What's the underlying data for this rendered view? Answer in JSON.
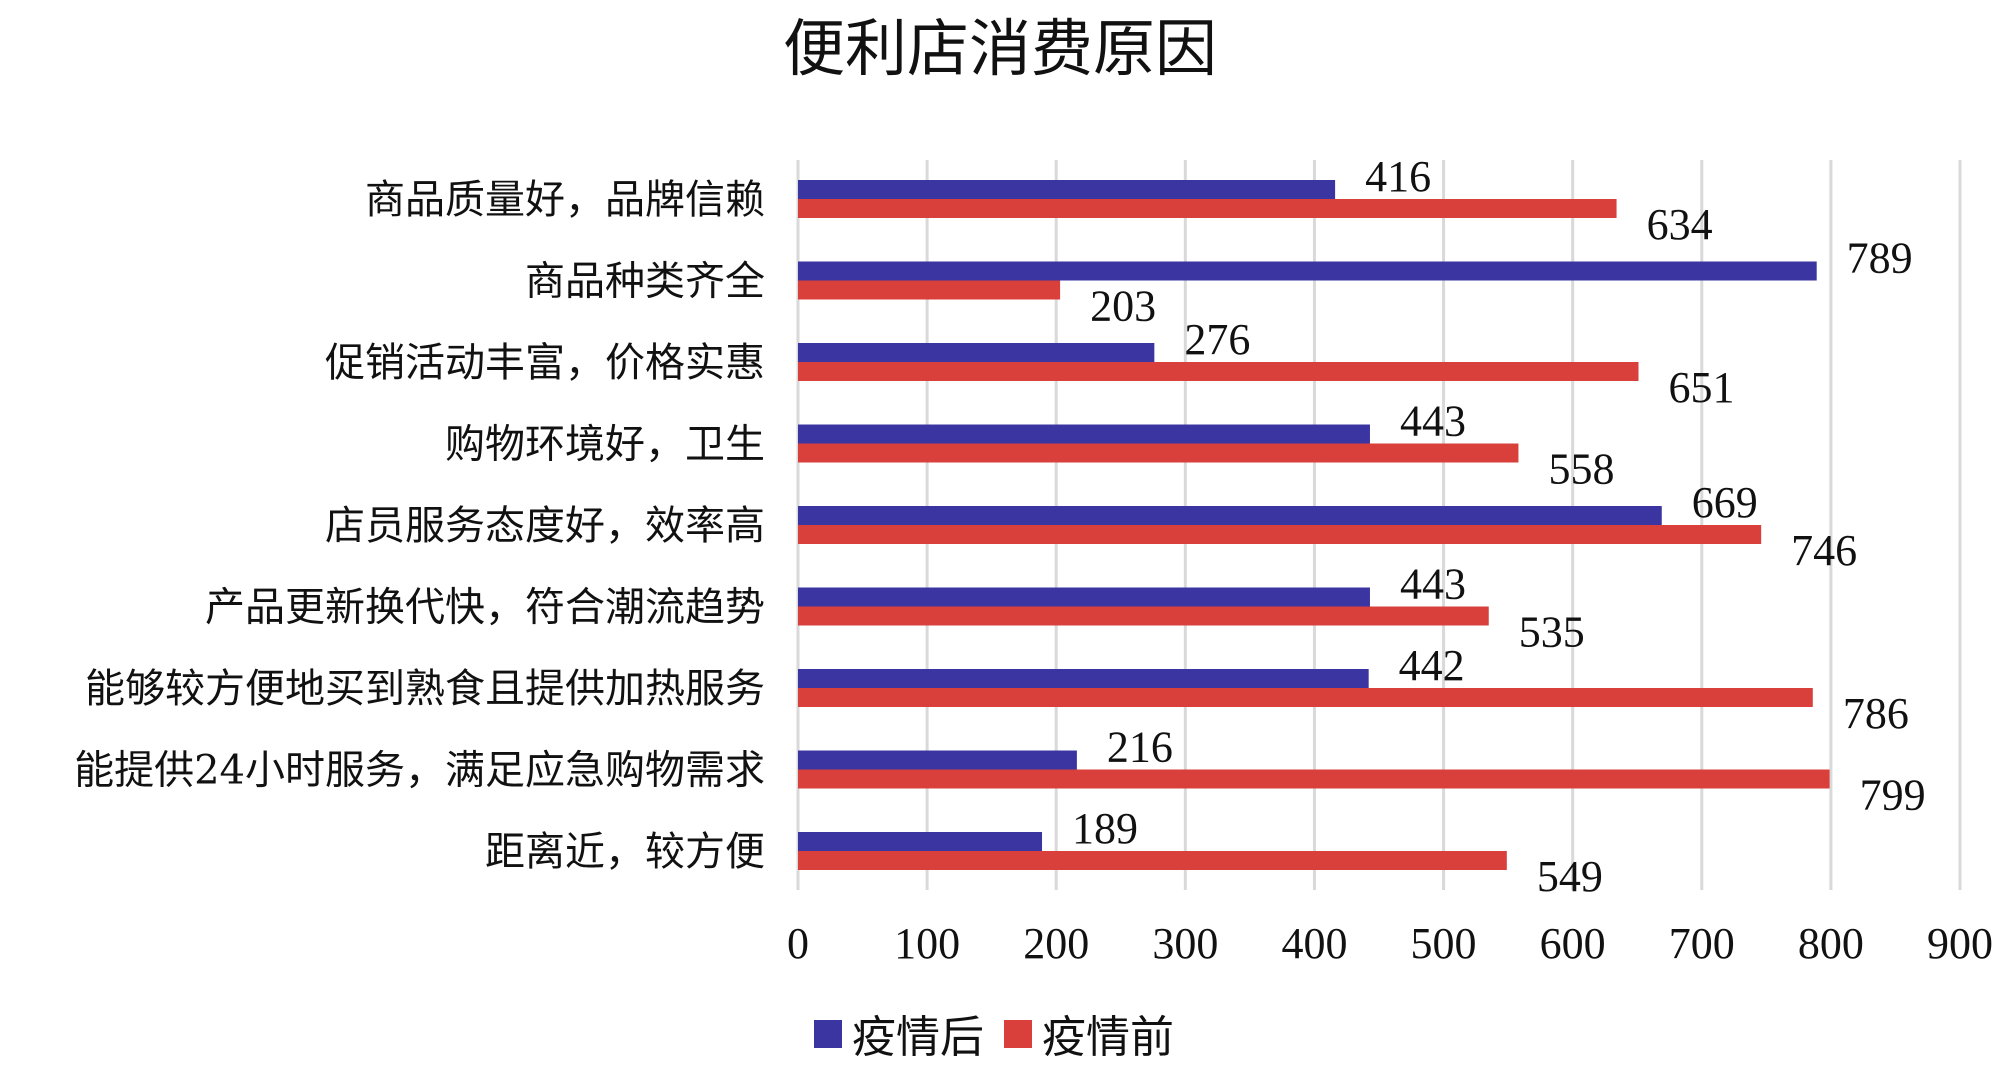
{
  "chart_data": {
    "type": "bar",
    "orientation": "horizontal",
    "title": "便利店消费原因",
    "categories": [
      "商品质量好，品牌信赖",
      "商品种类齐全",
      "促销活动丰富，价格实惠",
      "购物环境好，卫生",
      "店员服务态度好，效率高",
      "产品更新换代快，符合潮流趋势",
      "能够较方便地买到熟食且提供加热服务",
      "能提供24小时服务，满足应急购物需求",
      "距离近，较方便"
    ],
    "series": [
      {
        "name": "疫情后",
        "color": "#3a35a0",
        "values": [
          416,
          789,
          276,
          443,
          669,
          443,
          442,
          216,
          189
        ]
      },
      {
        "name": "疫情前",
        "color": "#d9403c",
        "values": [
          634,
          203,
          651,
          558,
          746,
          535,
          786,
          799,
          549
        ]
      }
    ],
    "xlim": [
      0,
      900
    ],
    "xticks": [
      "0",
      "100",
      "200",
      "300",
      "400",
      "500",
      "600",
      "700",
      "800",
      "900"
    ],
    "xlabel": "",
    "ylabel": "",
    "grid": "vertical",
    "legend": "bottom"
  }
}
